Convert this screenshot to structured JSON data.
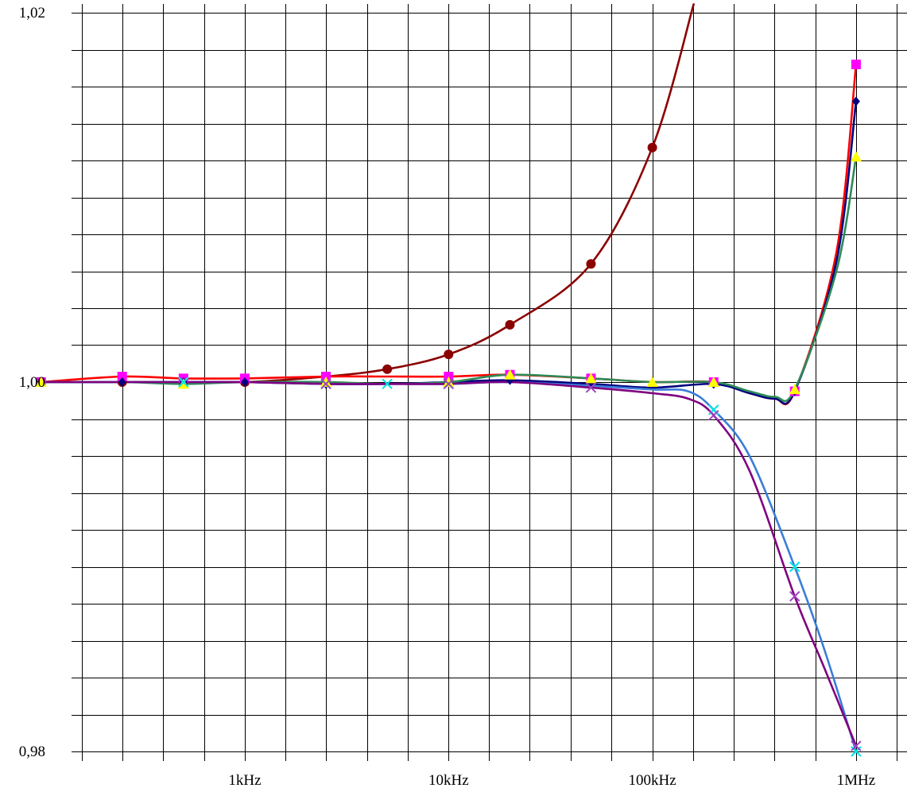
{
  "chart_data": {
    "type": "line",
    "title": "",
    "xlabel": "",
    "ylabel": "",
    "x_scale": "log",
    "xlim": [
      50,
      1600000
    ],
    "ylim": [
      0.98,
      1.02
    ],
    "grid": true,
    "legend": "none",
    "y_ticks": [
      {
        "value": 1.02,
        "label": "1,02"
      },
      {
        "value": 1.0,
        "label": "1,00"
      },
      {
        "value": 0.98,
        "label": "0,98"
      }
    ],
    "y_gridlines": [
      0.98,
      0.982,
      0.984,
      0.986,
      0.988,
      0.99,
      0.992,
      0.994,
      0.996,
      0.998,
      1.0,
      1.002,
      1.004,
      1.006,
      1.008,
      1.01,
      1.012,
      1.014,
      1.016,
      1.018,
      1.02
    ],
    "x_ticks": [
      {
        "value": 1000,
        "label": "1kHz"
      },
      {
        "value": 10000,
        "label": "10kHz"
      },
      {
        "value": 100000,
        "label": "100kHz"
      },
      {
        "value": 1000000,
        "label": "1MHz"
      }
    ],
    "series": [
      {
        "color": "#8b0000",
        "marker": "octagon",
        "x": [
          100,
          250,
          500,
          1000,
          2500,
          5000,
          10000,
          20000,
          50000,
          100000,
          160000
        ],
        "y": [
          1.0,
          1.0,
          1.0,
          1.0,
          1.0003,
          1.0007,
          1.0015,
          1.0031,
          1.0064,
          1.0127,
          1.0205
        ],
        "marker_x": [
          100,
          250,
          500,
          1000,
          2500,
          5000,
          10000,
          20000,
          50000,
          100000
        ]
      },
      {
        "color": "#ff0000",
        "marker": "square",
        "marker_color": "#ff00ff",
        "x": [
          100,
          250,
          500,
          1000,
          2500,
          5000,
          10000,
          20000,
          50000,
          100000,
          200000,
          300000,
          400000,
          500000,
          800000,
          1000000
        ],
        "y": [
          1.0,
          1.0003,
          1.0002,
          1.0002,
          1.0003,
          1.0003,
          1.0003,
          1.0004,
          1.0002,
          1.0,
          1.0,
          0.9994,
          0.9991,
          0.9995,
          1.007,
          1.0172
        ],
        "marker_x": [
          100,
          250,
          500,
          1000,
          2500,
          10000,
          20000,
          50000,
          200000,
          500000,
          1000000
        ]
      },
      {
        "color": "#000080",
        "marker": "diamond",
        "x": [
          100,
          250,
          500,
          1000,
          2500,
          5000,
          10000,
          20000,
          50000,
          100000,
          200000,
          300000,
          400000,
          500000,
          800000,
          1000000
        ],
        "y": [
          1.0,
          1.0,
          1.0,
          1.0,
          0.9999,
          0.9999,
          1.0,
          1.0001,
          0.9999,
          0.9997,
          0.9999,
          0.9994,
          0.9991,
          0.9995,
          1.0065,
          1.0152
        ],
        "marker_x": [
          100,
          250,
          500,
          1000,
          2500,
          10000,
          20000,
          50000,
          200000,
          500000,
          1000000
        ]
      },
      {
        "color": "#2e8b57",
        "marker": "triangle",
        "marker_color": "#ffff00",
        "x": [
          100,
          250,
          500,
          1000,
          2500,
          5000,
          10000,
          20000,
          50000,
          100000,
          200000,
          300000,
          400000,
          500000,
          800000,
          1000000
        ],
        "y": [
          1.0,
          1.0,
          0.9999,
          1.0,
          1.0,
          0.9999,
          1.0,
          1.0004,
          1.0002,
          1.0,
          1.0,
          0.9995,
          0.9992,
          0.9996,
          1.006,
          1.0122
        ],
        "marker_x": [
          100,
          500,
          2500,
          10000,
          20000,
          50000,
          100000,
          200000,
          500000,
          1000000
        ]
      },
      {
        "color": "#3b7dd8",
        "marker": "x",
        "marker_color": "#00e5e5",
        "x": [
          100,
          250,
          500,
          1000,
          2500,
          5000,
          10000,
          20000,
          50000,
          100000,
          150000,
          200000,
          300000,
          500000,
          700000,
          1000000
        ],
        "y": [
          1.0,
          1.0,
          1.0,
          1.0,
          0.9999,
          0.9999,
          0.9999,
          1.0,
          0.9998,
          0.9996,
          0.9995,
          0.9985,
          0.996,
          0.99,
          0.9855,
          0.98
        ],
        "marker_x": [
          500,
          2500,
          5000,
          10000,
          200000,
          500000,
          1000000
        ]
      },
      {
        "color": "#800080",
        "marker": "x",
        "marker_color": "#a040c0",
        "x": [
          100,
          250,
          500,
          1000,
          2500,
          5000,
          10000,
          20000,
          50000,
          100000,
          150000,
          200000,
          300000,
          500000,
          700000,
          1000000
        ],
        "y": [
          1.0,
          1.0,
          1.0,
          1.0,
          0.9999,
          0.9999,
          0.9999,
          1.0,
          0.9997,
          0.9994,
          0.9991,
          0.9982,
          0.9952,
          0.9884,
          0.9845,
          0.9803
        ],
        "marker_x": [
          2500,
          10000,
          50000,
          200000,
          500000,
          1000000
        ]
      }
    ]
  }
}
